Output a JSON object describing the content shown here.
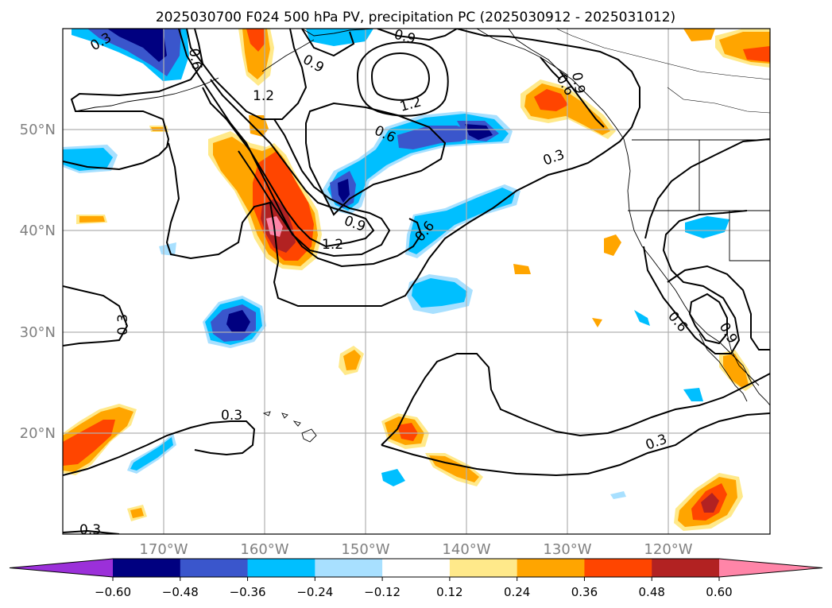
{
  "title": "2025030700 F024 500 hPa PV, precipitation PC (2025030912 - 2025031012)",
  "lat_labels": [
    "50°N",
    "40°N",
    "30°N",
    "20°N"
  ],
  "lon_labels": [
    "170°W",
    "160°W",
    "150°W",
    "140°W",
    "130°W",
    "120°W"
  ],
  "contour_labels": [
    "0.3",
    "0.6",
    "0.9",
    "1.2",
    "0.9",
    "1.2",
    "0.6",
    "0.9",
    "1.2",
    "0.6",
    "0.3",
    "0.3",
    "0.3",
    "0.3",
    "0.6",
    "0.9",
    "0.3",
    "0.6",
    "0.9"
  ],
  "colorbar": {
    "colors": [
      "#9b30d9",
      "#000080",
      "#3a56cc",
      "#00bfff",
      "#a8e0ff",
      "#ffffff",
      "#ffe98a",
      "#ffa500",
      "#ff4500",
      "#b22222",
      "#ff85a8"
    ],
    "tick_labels": [
      "−0.60",
      "−0.48",
      "−0.36",
      "−0.24",
      "−0.12",
      "0.12",
      "0.24",
      "0.36",
      "0.48",
      "0.60"
    ]
  },
  "palette": {
    "neg_strong": "#000080",
    "neg_mid": "#3a56cc",
    "neg_light": "#00bfff",
    "neg_faint": "#a8e0ff",
    "pos_faint": "#ffe98a",
    "pos_light": "#ffa500",
    "pos_mid": "#ff4500",
    "pos_strong": "#b22222",
    "pos_max": "#ff85a8",
    "axis_label": "#808080",
    "grid": "#b0b0b0"
  }
}
